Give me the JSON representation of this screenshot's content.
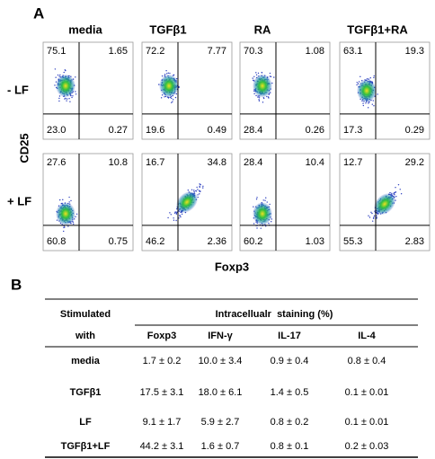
{
  "panel_a": {
    "label": "A",
    "columns": [
      "media",
      "TGFβ1",
      "RA",
      "TGFβ1+RA"
    ],
    "rows": [
      {
        "label": "- LF",
        "plots": [
          [
            "75.1",
            "1.65",
            "23.0",
            "0.27"
          ],
          [
            "72.2",
            "7.77",
            "19.6",
            "0.49"
          ],
          [
            "70.3",
            "1.08",
            "28.4",
            "0.26"
          ],
          [
            "63.1",
            "19.3",
            "17.3",
            "0.29"
          ]
        ]
      },
      {
        "label": "+ LF",
        "plots": [
          [
            "27.6",
            "10.8",
            "60.8",
            "0.75"
          ],
          [
            "16.7",
            "34.8",
            "46.2",
            "2.36"
          ],
          [
            "28.4",
            "10.4",
            "60.2",
            "1.03"
          ],
          [
            "12.7",
            "29.2",
            "55.3",
            "2.83"
          ]
        ]
      }
    ],
    "y_axis": "CD25",
    "x_axis": "Foxp3"
  },
  "panel_b": {
    "label": "B",
    "header": {
      "first": [
        "Stimulated",
        "with"
      ],
      "group": "Intracellualr  staining (%)",
      "columns": [
        "Foxp3",
        "IFN-γ",
        "IL-17",
        "IL-4"
      ]
    },
    "rows": [
      [
        "media",
        "1.7 ± 0.2",
        "10.0 ± 3.4",
        "0.9 ± 0.4",
        "0.8 ± 0.4"
      ],
      [
        "TGFβ1",
        "17.5 ± 3.1",
        "18.0 ± 6.1",
        "1.4 ± 0.5",
        "0.1 ± 0.01"
      ],
      [
        "LF",
        "9.1 ± 1.7",
        "5.9 ± 2.7",
        "0.8 ± 0.2",
        "0.1 ± 0.01"
      ],
      [
        "TGFβ1+LF",
        "44.2 ± 3.1",
        "1.6 ± 0.7",
        "0.8 ± 0.1",
        "0.2 ± 0.03"
      ]
    ]
  }
}
